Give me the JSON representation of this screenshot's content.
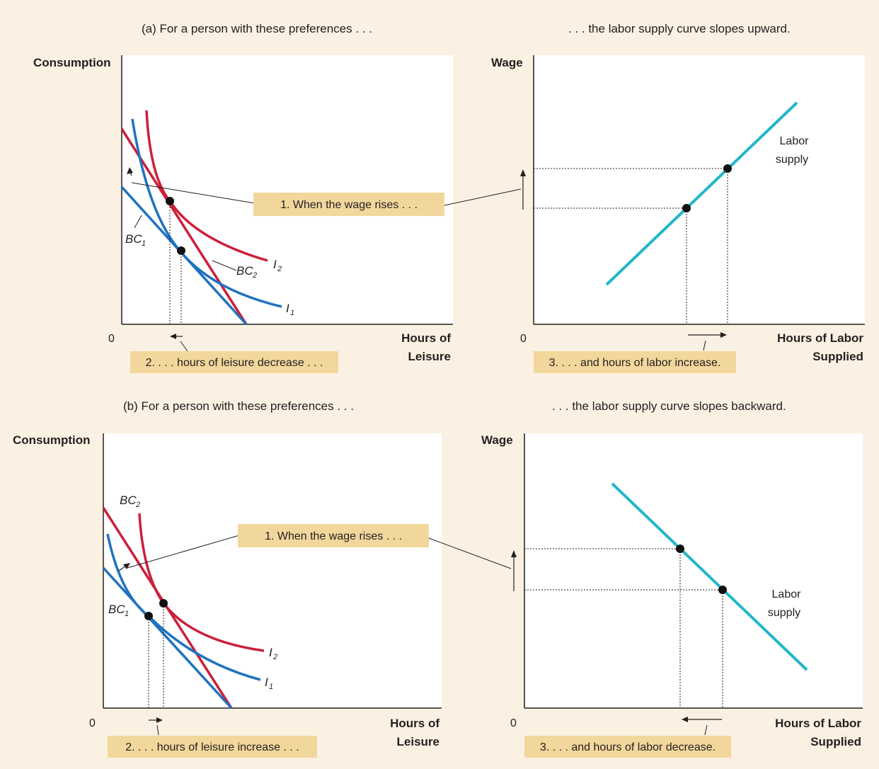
{
  "colors": {
    "background": "#fbf1e2",
    "panel": "#ffffff",
    "indifference": "#cc1f3a",
    "budget": "#1f72c0",
    "labor_supply": "#22b7c9",
    "callout": "#f2d79c"
  },
  "panel_a": {
    "left_header": "(a) For a person with these preferences . . .",
    "right_header": ". . . the labor supply curve slopes upward.",
    "left_y_label": "Consumption",
    "left_x_label_1": "Hours of",
    "left_x_label_2": "Leisure",
    "right_y_label": "Wage",
    "right_x_label_1": "Hours of Labor",
    "right_x_label_2": "Supplied",
    "origin_left": "0",
    "origin_right": "0",
    "callout_wage": "1. When the wage rises . . .",
    "callout_leisure": "2. . . . hours of leisure decrease . . .",
    "callout_labor": "3. . . . and hours of labor increase.",
    "bc1": "BC",
    "bc1_sub": "1",
    "bc2": "BC",
    "bc2_sub": "2",
    "i1": "I",
    "i1_sub": "1",
    "i2": "I",
    "i2_sub": "2",
    "supply_1": "Labor",
    "supply_2": "supply"
  },
  "panel_b": {
    "left_header": "(b) For a person with these preferences . . .",
    "right_header": ". . . the labor supply curve slopes backward.",
    "left_y_label": "Consumption",
    "left_x_label_1": "Hours of",
    "left_x_label_2": "Leisure",
    "right_y_label": "Wage",
    "right_x_label_1": "Hours of Labor",
    "right_x_label_2": "Supplied",
    "origin_left": "0",
    "origin_right": "0",
    "callout_wage": "1. When the wage rises . . .",
    "callout_leisure": "2. . . . hours of leisure increase . . .",
    "callout_labor": "3. . . . and hours of labor decrease.",
    "bc1": "BC",
    "bc1_sub": "1",
    "bc2": "BC",
    "bc2_sub": "2",
    "i1": "I",
    "i1_sub": "1",
    "i2": "I",
    "i2_sub": "2",
    "supply_1": "Labor",
    "supply_2": "supply"
  }
}
